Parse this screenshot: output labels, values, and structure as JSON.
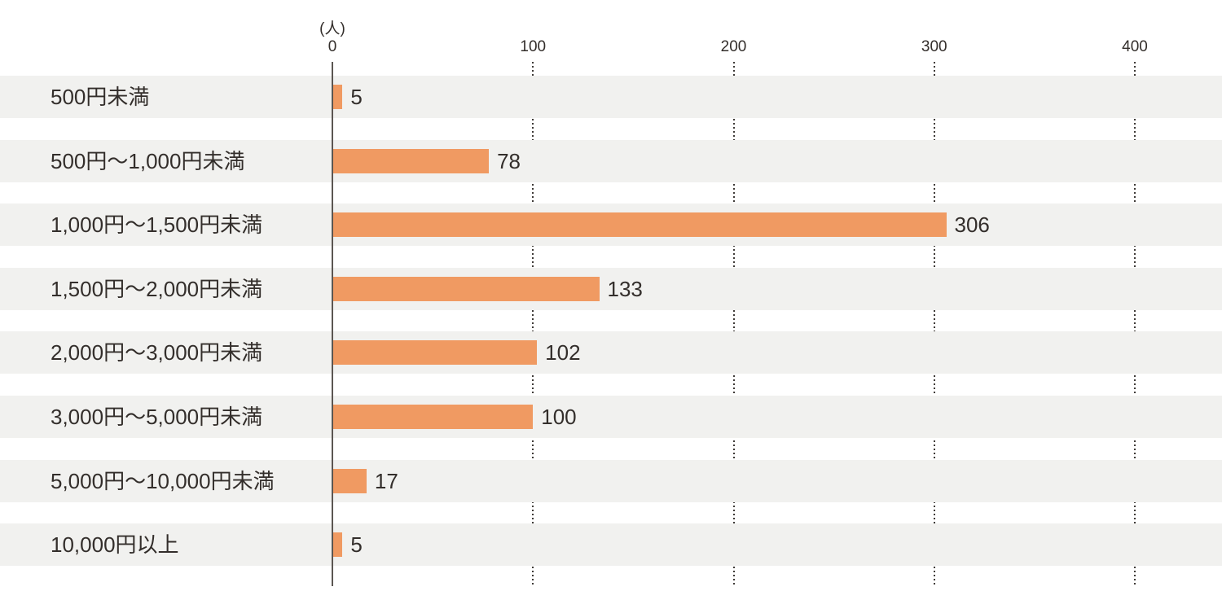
{
  "chart_data": {
    "type": "bar",
    "orientation": "horizontal",
    "title": "",
    "unit_label": "(人)",
    "categories": [
      "500円未満",
      "500円〜1,000円未満",
      "1,000円〜1,500円未満",
      "1,500円〜2,000円未満",
      "2,000円〜3,000円未満",
      "3,000円〜5,000円未満",
      "5,000円〜10,000円未満",
      "10,000円以上"
    ],
    "values": [
      5,
      78,
      306,
      133,
      102,
      100,
      17,
      5
    ],
    "x_ticks": [
      0,
      100,
      200,
      300,
      400
    ],
    "xlim": [
      0,
      400
    ],
    "grid": "dotted vertical gridlines at 100, 200, 300, 400; visible only between row stripes",
    "legend": "none",
    "colors": {
      "bar": "#F09A62",
      "row_stripe": "#F1F1EF",
      "axis_line": "#5b5652",
      "grid_dot": "#3f3b38",
      "text": "#332E2B",
      "background": "#ffffff"
    }
  }
}
